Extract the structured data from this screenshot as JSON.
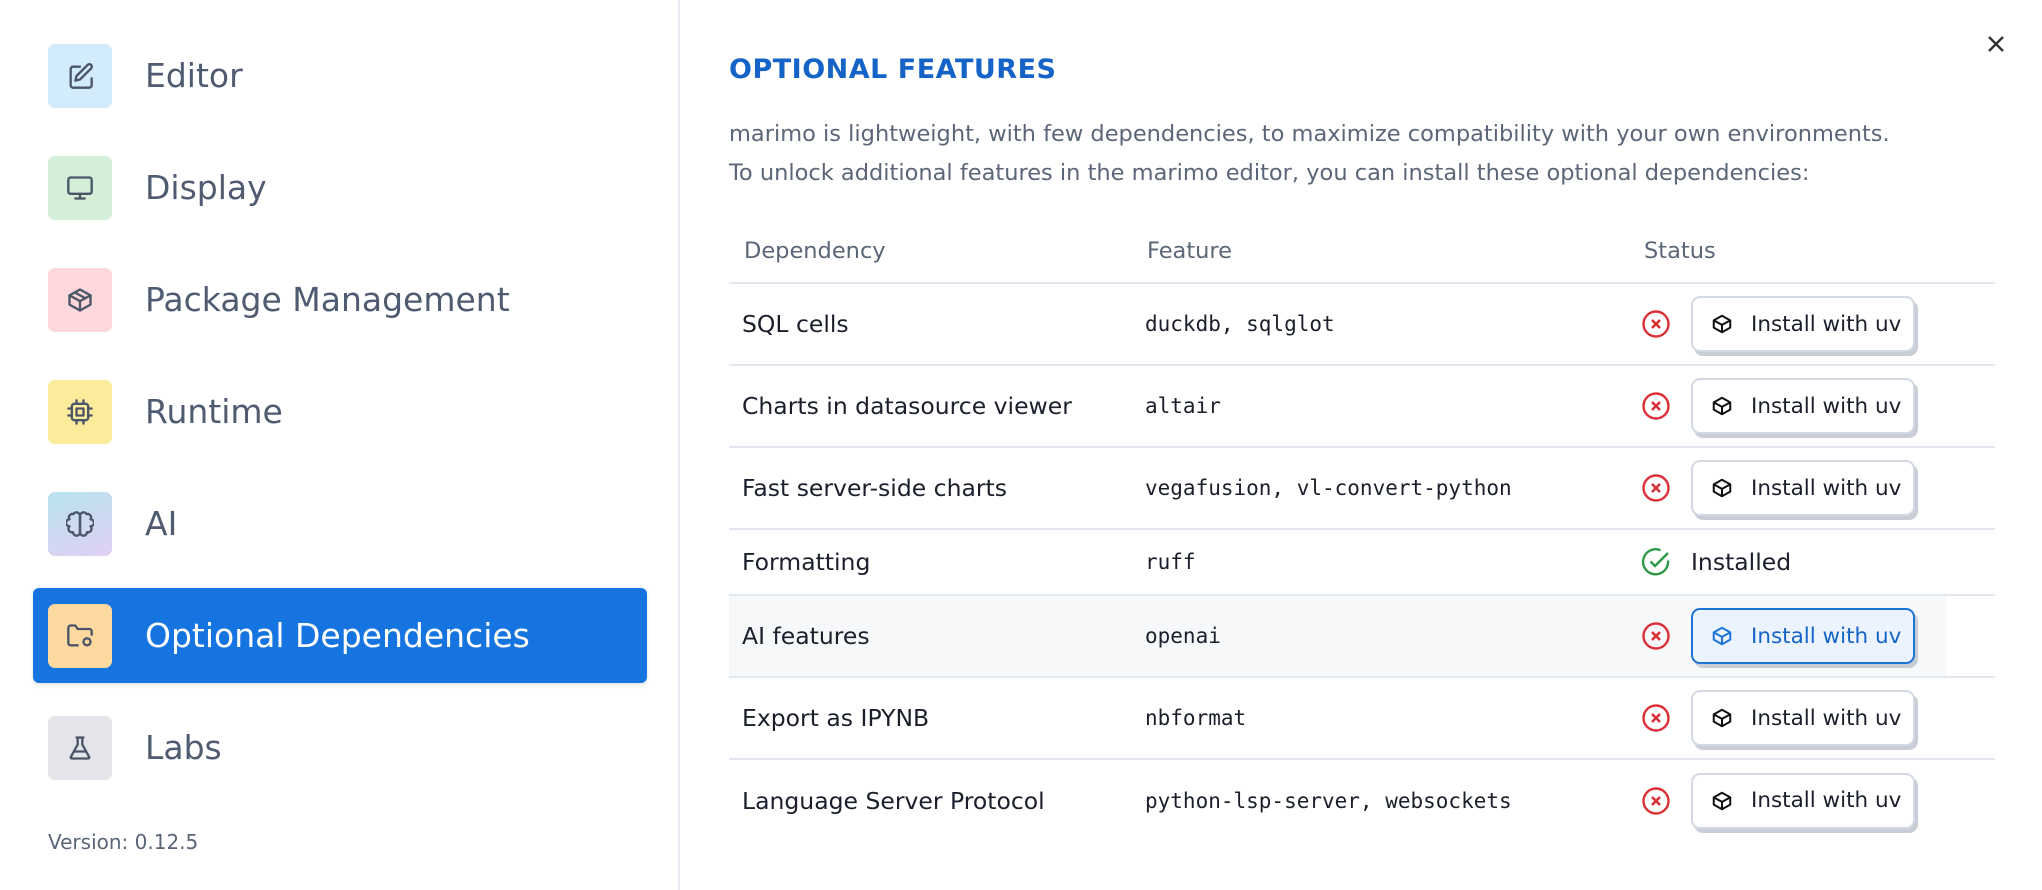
{
  "sidebar": {
    "items": [
      {
        "label": "Editor",
        "icon": "edit-icon",
        "color": "#d2ebfd"
      },
      {
        "label": "Display",
        "icon": "monitor-icon",
        "color": "#d5eed8"
      },
      {
        "label": "Package Management",
        "icon": "package-icon",
        "color": "#fdd7da"
      },
      {
        "label": "Runtime",
        "icon": "cpu-icon",
        "color": "#fdeb9c"
      },
      {
        "label": "AI",
        "icon": "brain-icon",
        "color": "#c8dff0"
      },
      {
        "label": "Optional Dependencies",
        "icon": "folder-cog-icon",
        "color": "#fdd9a0",
        "active": true
      },
      {
        "label": "Labs",
        "icon": "flask-icon",
        "color": "#e4e5ea"
      }
    ],
    "version": "Version: 0.12.5"
  },
  "main": {
    "title": "OPTIONAL FEATURES",
    "description": [
      "marimo is lightweight, with few dependencies, to maximize compatibility with your own environments.",
      "To unlock additional features in the marimo editor, you can install these optional dependencies:"
    ],
    "table": {
      "headers": [
        "Dependency",
        "Feature",
        "Status"
      ],
      "rows": [
        {
          "dependency": "SQL cells",
          "feature": "duckdb, sqlglot",
          "status": "missing",
          "action": "Install with uv"
        },
        {
          "dependency": "Charts in datasource viewer",
          "feature": "altair",
          "status": "missing",
          "action": "Install with uv"
        },
        {
          "dependency": "Fast server-side charts",
          "feature": "vegafusion, vl-convert-python",
          "status": "missing",
          "action": "Install with uv"
        },
        {
          "dependency": "Formatting",
          "feature": "ruff",
          "status": "installed",
          "action": "Installed"
        },
        {
          "dependency": "AI features",
          "feature": "openai",
          "status": "missing",
          "action": "Install with uv",
          "hovered": true
        },
        {
          "dependency": "Export as IPYNB",
          "feature": "nbformat",
          "status": "missing",
          "action": "Install with uv"
        },
        {
          "dependency": "Language Server Protocol",
          "feature": "python-lsp-server, websockets",
          "status": "missing",
          "action": "Install with uv"
        }
      ]
    }
  },
  "colors": {
    "accent": "#1574e0",
    "error": "#d93036",
    "success": "#2e9a48",
    "title": "#1563c7"
  }
}
